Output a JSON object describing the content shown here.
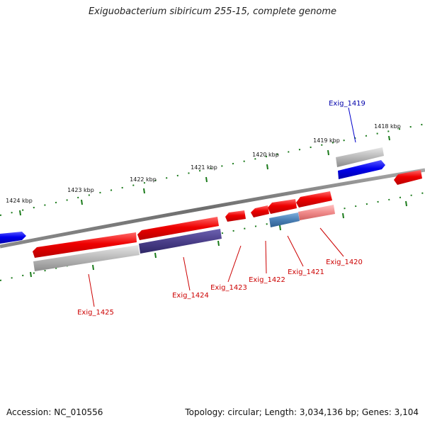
{
  "title": "Exiguobacterium sibiricum 255-15, complete genome",
  "footer": {
    "accession": "Accession: NC_010556",
    "summary": "Topology: circular; Length: 3,034,136 bp; Genes: 3,104"
  },
  "scale_labels": [
    "1418 kbp",
    "1419 kbp",
    "1420 kbp",
    "1421 kbp",
    "1422 kbp",
    "1423 kbp",
    "1424 kbp"
  ],
  "gene_labels": [
    {
      "name": "Exig_1419",
      "strand": "forward"
    },
    {
      "name": "Exig_1420",
      "strand": "reverse"
    },
    {
      "name": "Exig_1421",
      "strand": "reverse"
    },
    {
      "name": "Exig_1422",
      "strand": "reverse"
    },
    {
      "name": "Exig_1423",
      "strand": "reverse"
    },
    {
      "name": "Exig_1424",
      "strand": "reverse"
    },
    {
      "name": "Exig_1425",
      "strand": "reverse"
    }
  ],
  "colors": {
    "forward_gene": "#0000ee",
    "reverse_gene": "#ee0000",
    "forward_label": "#0000aa",
    "reverse_label": "#cc0000",
    "backbone": "#7a7a7a",
    "tick": "#1a7a1a",
    "gray_feature": "#b4b4b4",
    "purple_feature": "#4b3f8a",
    "steelblue_feature": "#4a7fb5",
    "pink_feature": "#f08b8b"
  }
}
